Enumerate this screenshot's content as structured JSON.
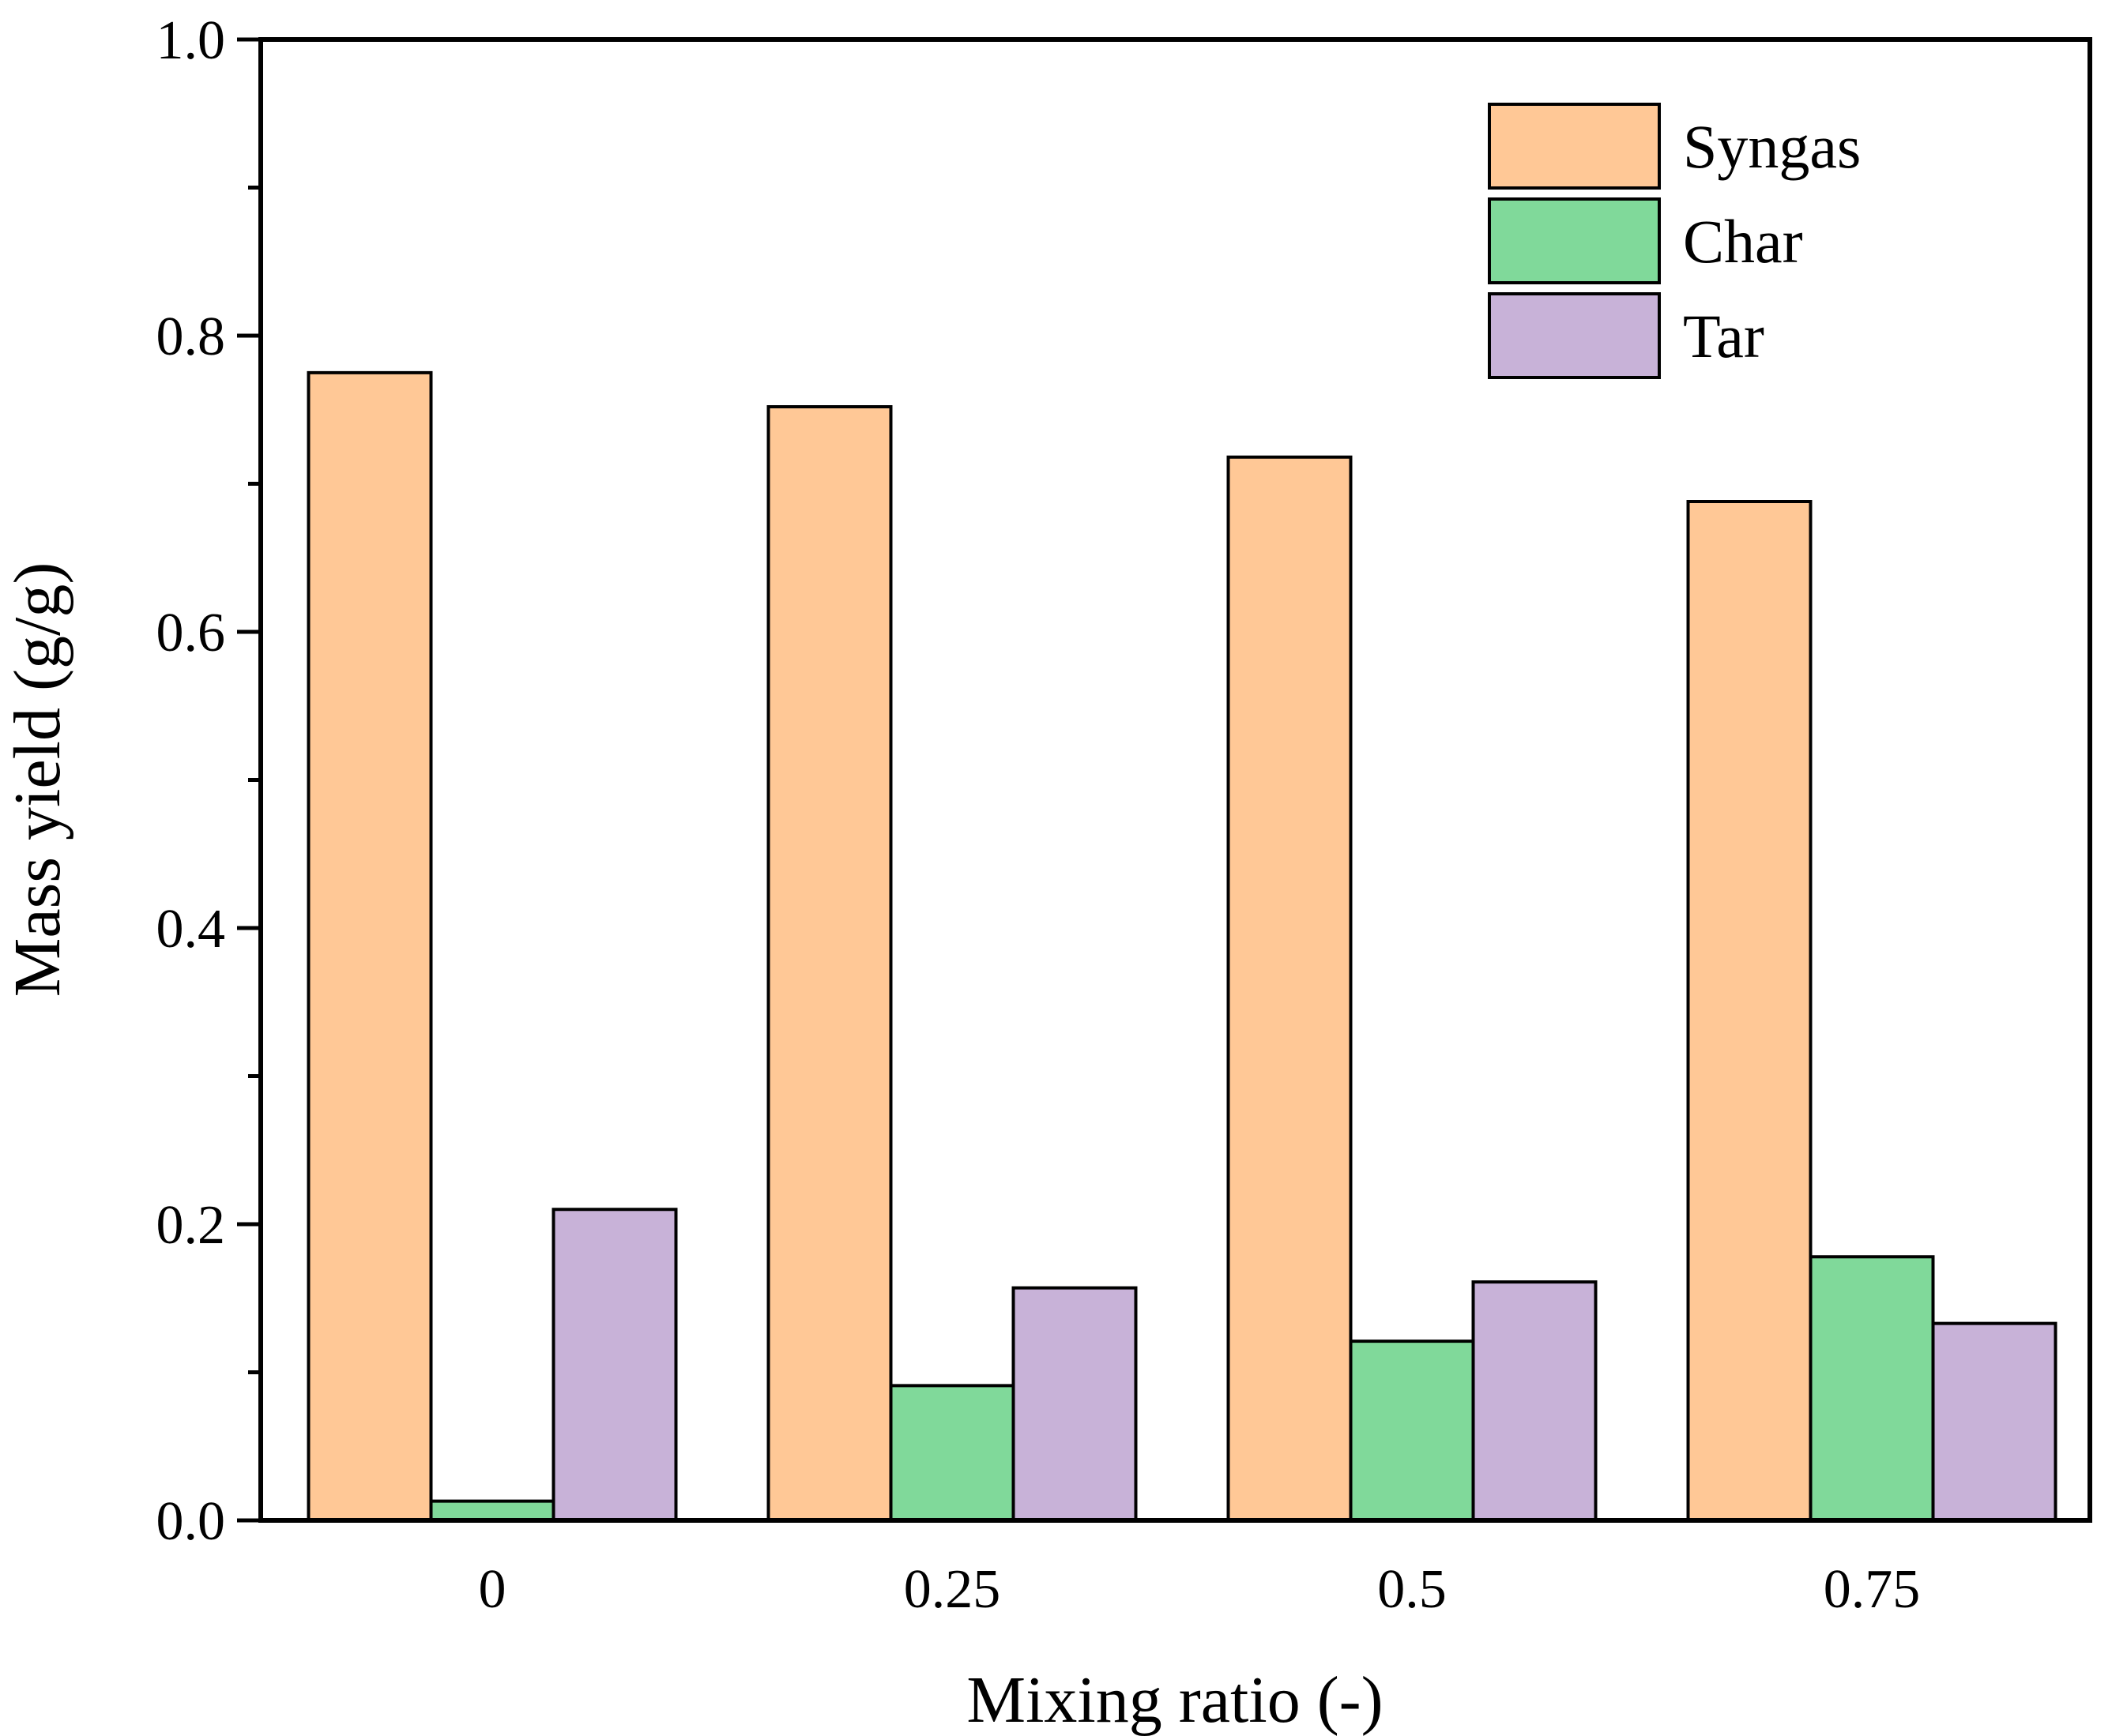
{
  "chart_data": {
    "type": "bar",
    "title": "",
    "xlabel": "Mixing ratio (-)",
    "ylabel": "Mass yield (g/g)",
    "categories": [
      "0",
      "0.25",
      "0.5",
      "0.75"
    ],
    "ylim": [
      0,
      1.0
    ],
    "yticks": [
      "0.0",
      "0.2",
      "0.4",
      "0.6",
      "0.8",
      "1.0"
    ],
    "ytick_values": [
      0,
      0.2,
      0.4,
      0.6,
      0.8,
      1.0
    ],
    "yminor_tick_values": [
      0.1,
      0.3,
      0.5,
      0.7,
      0.9
    ],
    "grid": false,
    "legend_position": "top-right",
    "series": [
      {
        "name": "Syngas",
        "color": "#ffc896",
        "values": [
          0.775,
          0.752,
          0.718,
          0.688
        ]
      },
      {
        "name": "Char",
        "color": "#80d99a",
        "values": [
          0.013,
          0.091,
          0.121,
          0.178
        ]
      },
      {
        "name": "Tar",
        "color": "#c8b2d8",
        "values": [
          0.21,
          0.157,
          0.161,
          0.133
        ]
      }
    ]
  }
}
